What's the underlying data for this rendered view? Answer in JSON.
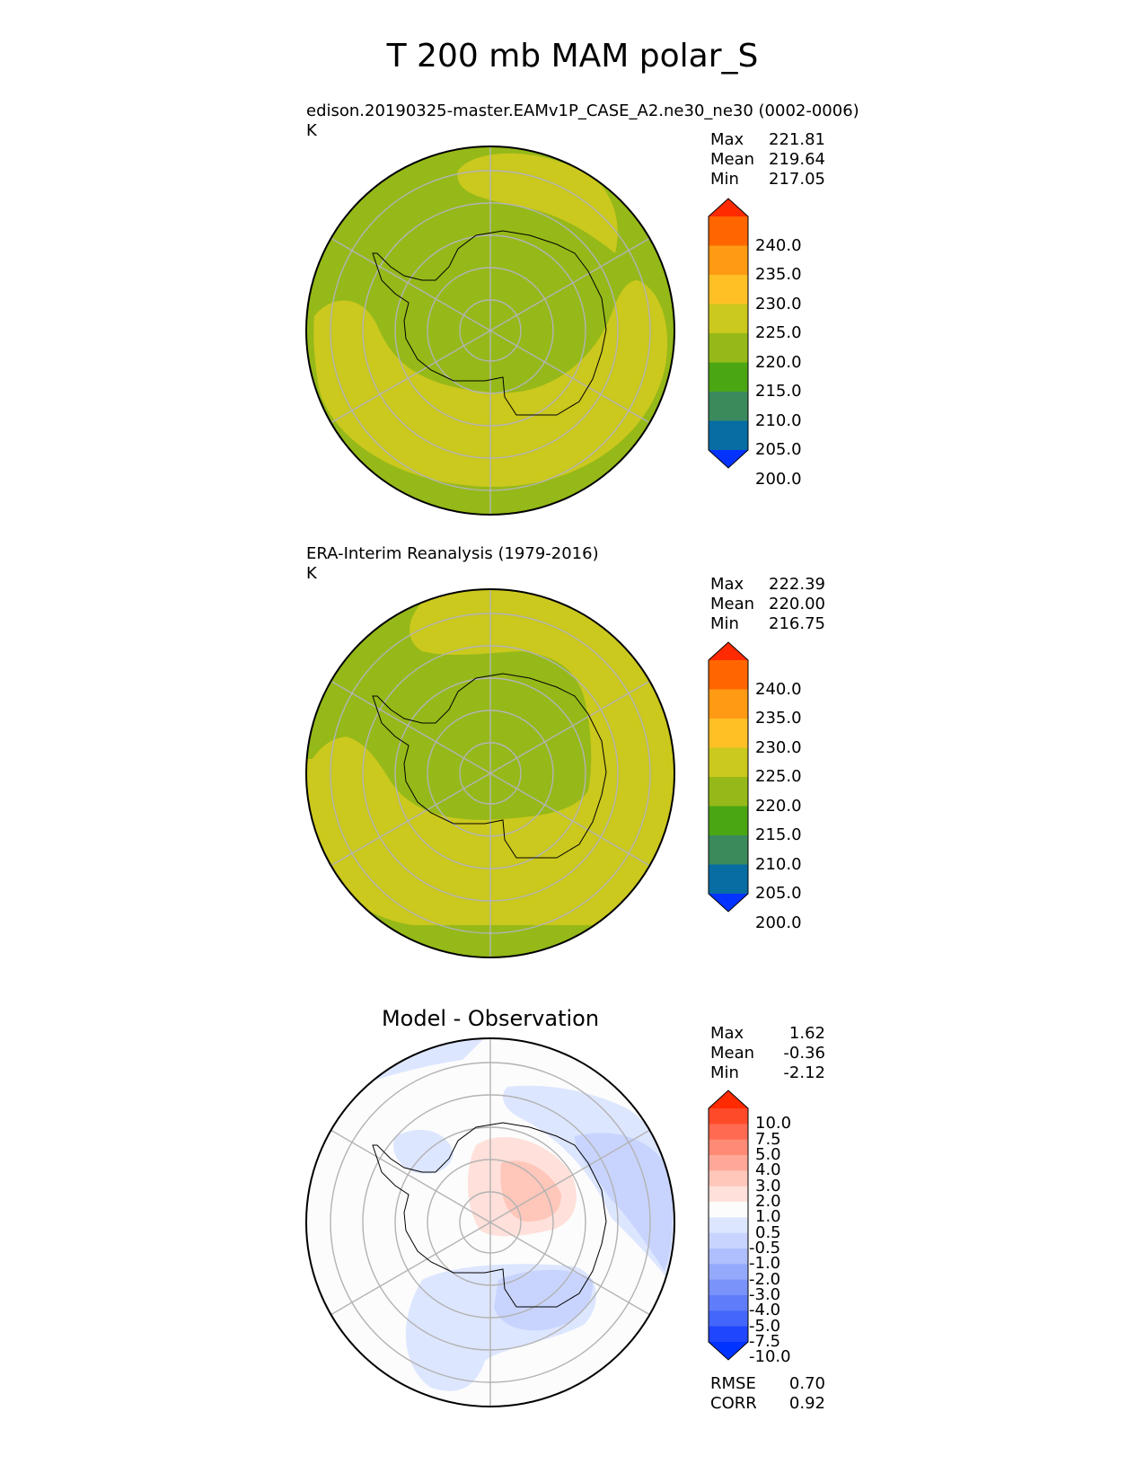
{
  "chart_data": {
    "type": "contour_map",
    "title": "T 200 mb MAM polar_S",
    "projection": "south polar stereographic",
    "panels": [
      {
        "id": "test",
        "subtitle": "edison.20190325-master.EAMv1P_CASE_A2.ne30_ne30 (0002-0006)",
        "units": "K",
        "stats": [
          {
            "label": "Max",
            "value": "221.81"
          },
          {
            "label": "Mean",
            "value": "219.64"
          },
          {
            "label": "Min",
            "value": "217.05"
          }
        ],
        "colorbar": {
          "levels": [
            "240.0",
            "235.0",
            "230.0",
            "225.0",
            "220.0",
            "215.0",
            "210.0",
            "205.0",
            "200.0"
          ],
          "colors": [
            "#ff2a00",
            "#ff6600",
            "#ff9a14",
            "#fec024",
            "#cbc81e",
            "#95b918",
            "#4ba614",
            "#3b8a5c",
            "#076da3",
            "#0433ff"
          ],
          "extend": "both"
        }
      },
      {
        "id": "reference",
        "subtitle": "ERA-Interim Reanalysis (1979-2016)",
        "units": "K",
        "stats": [
          {
            "label": "Max",
            "value": "222.39"
          },
          {
            "label": "Mean",
            "value": "220.00"
          },
          {
            "label": "Min",
            "value": "216.75"
          }
        ],
        "colorbar": {
          "levels": [
            "240.0",
            "235.0",
            "230.0",
            "225.0",
            "220.0",
            "215.0",
            "210.0",
            "205.0",
            "200.0"
          ],
          "colors": [
            "#ff2a00",
            "#ff6600",
            "#ff9a14",
            "#fec024",
            "#cbc81e",
            "#95b918",
            "#4ba614",
            "#3b8a5c",
            "#076da3",
            "#0433ff"
          ],
          "extend": "both"
        }
      },
      {
        "id": "difference",
        "subtitle": "Model - Observation",
        "stats": [
          {
            "label": "Max",
            "value": "1.62"
          },
          {
            "label": "Mean",
            "value": "-0.36"
          },
          {
            "label": "Min",
            "value": "-2.12"
          }
        ],
        "metrics": [
          {
            "label": "RMSE",
            "value": "0.70"
          },
          {
            "label": "CORR",
            "value": "0.92"
          }
        ],
        "colorbar": {
          "levels": [
            "10.0",
            "7.5",
            "5.0",
            "4.0",
            "3.0",
            "2.0",
            "1.0",
            "0.5",
            "-0.5",
            "-1.0",
            "-2.0",
            "-3.0",
            "-4.0",
            "-5.0",
            "-7.5",
            "-10.0"
          ],
          "colors": [
            "#ff2a00",
            "#ff4a2a",
            "#ff6a50",
            "#ff8a75",
            "#ffa898",
            "#ffc6ba",
            "#ffe0da",
            "#fcfcfc",
            "#dde6ff",
            "#c8d4fe",
            "#aebffd",
            "#94a9fc",
            "#7a93fb",
            "#5f7dfb",
            "#4466fb",
            "#1f45fd",
            "#0033ff"
          ],
          "extend": "both"
        }
      }
    ]
  }
}
